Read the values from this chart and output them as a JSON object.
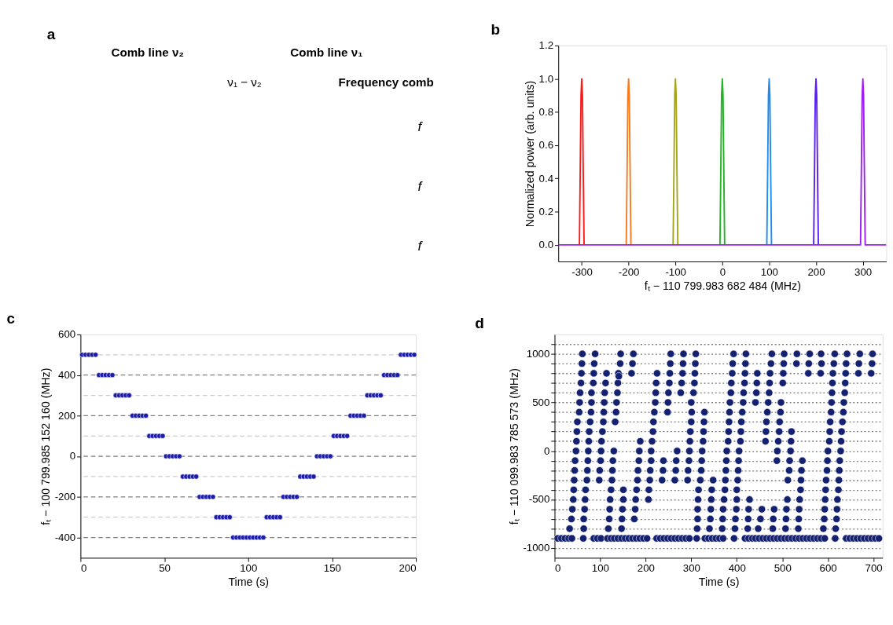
{
  "chart_data": [
    {
      "type": "other",
      "title": "a",
      "annotations": [
        "Comb line ν₂",
        "Comb line ν₁",
        "ν₁ − ν₂",
        "Frequency comb",
        "f",
        "f",
        "f"
      ]
    },
    {
      "type": "line",
      "title": "b",
      "xlabel": "fₜ − 110 799.983 682 484 (MHz)",
      "ylabel": "Normalized power (arb. units)",
      "xlim": [
        -350,
        350
      ],
      "xticks": [
        -300,
        -200,
        -100,
        0,
        100,
        200,
        300
      ],
      "ylim": [
        -0.1,
        1.2
      ],
      "yticks": [
        {
          "value": 0,
          "label": "0.0"
        },
        {
          "value": 0.2,
          "label": "0.2"
        },
        {
          "value": 0.4,
          "label": "0.4"
        },
        {
          "value": 0.6,
          "label": "0.6"
        },
        {
          "value": 0.8,
          "label": "0.8"
        },
        {
          "value": 1,
          "label": "1.0"
        },
        {
          "value": 1.2,
          "label": "1.2"
        }
      ],
      "line_style": "solid",
      "series": [
        {
          "color": "#ff1a1a",
          "x": [
            -305,
            -303,
            -301.5,
            -300,
            -298.5,
            -297,
            -295
          ],
          "values": [
            0,
            0.5,
            0.9,
            1,
            0.9,
            0.5,
            0
          ]
        },
        {
          "color": "#f57a22",
          "x": [
            -205,
            -203,
            -201.5,
            -200,
            -198.5,
            -197,
            -195
          ],
          "values": [
            0,
            0.5,
            0.9,
            1,
            0.9,
            0.5,
            0
          ]
        },
        {
          "color": "#a5a51a",
          "x": [
            -105,
            -103,
            -101.5,
            -100,
            -98.5,
            -97,
            -95
          ],
          "values": [
            0,
            0.5,
            0.9,
            1,
            0.9,
            0.5,
            0
          ]
        },
        {
          "color": "#22b422",
          "x": [
            -5,
            -3,
            -1.5,
            0,
            1.5,
            3,
            5
          ],
          "values": [
            0,
            0.5,
            0.9,
            1,
            0.9,
            0.5,
            0
          ]
        },
        {
          "color": "#1e8cf0",
          "x": [
            95,
            97,
            98.5,
            100,
            101.5,
            103,
            105
          ],
          "values": [
            0,
            0.5,
            0.9,
            1,
            0.9,
            0.5,
            0
          ]
        },
        {
          "color": "#5a1ef5",
          "x": [
            195,
            197,
            198.5,
            200,
            201.5,
            203,
            205
          ],
          "values": [
            0,
            0.5,
            0.9,
            1,
            0.9,
            0.5,
            0
          ]
        },
        {
          "color": "#a020f0",
          "x": [
            -350,
            295,
            297,
            298.5,
            300,
            301.5,
            303,
            305,
            350
          ],
          "values": [
            0,
            0,
            0.5,
            0.9,
            1,
            0.9,
            0.5,
            0,
            0
          ]
        }
      ]
    },
    {
      "type": "scatter",
      "title": "c",
      "xlabel": "Time (s)",
      "ylabel": "fₜ − 100 799.985 152 160 (MHz)",
      "xlim": [
        0,
        200
      ],
      "xticks": [
        0,
        50,
        100,
        150,
        200
      ],
      "ylim": [
        -500,
        600
      ],
      "yticks": [
        -400,
        -200,
        0,
        200,
        400,
        600
      ],
      "marker": "circle",
      "ref_lines": [
        {
          "axis": "y",
          "value": -400,
          "color": "#7f7f7f",
          "line_style": "dashed"
        },
        {
          "axis": "y",
          "value": -300,
          "color": "#cccccc",
          "line_style": "dashed"
        },
        {
          "axis": "y",
          "value": -200,
          "color": "#7f7f7f",
          "line_style": "dashed"
        },
        {
          "axis": "y",
          "value": -100,
          "color": "#cccccc",
          "line_style": "dashed"
        },
        {
          "axis": "y",
          "value": 0,
          "color": "#7f7f7f",
          "line_style": "dashed"
        },
        {
          "axis": "y",
          "value": 100,
          "color": "#cccccc",
          "line_style": "dashed"
        },
        {
          "axis": "y",
          "value": 200,
          "color": "#7f7f7f",
          "line_style": "dashed"
        },
        {
          "axis": "y",
          "value": 300,
          "color": "#cccccc",
          "line_style": "dashed"
        },
        {
          "axis": "y",
          "value": 400,
          "color": "#7f7f7f",
          "line_style": "dashed"
        },
        {
          "axis": "y",
          "value": 500,
          "color": "#cccccc",
          "line_style": "dashed"
        }
      ],
      "series": [
        {
          "color": "#1c1caa",
          "x": [
            1,
            3,
            5,
            7,
            9,
            11,
            13,
            15,
            17,
            19,
            21,
            23,
            25,
            27,
            29,
            31,
            33,
            35,
            37,
            39,
            41,
            43,
            45,
            47,
            49,
            51,
            53,
            55,
            57,
            59,
            61,
            63,
            65,
            67,
            69,
            71,
            73,
            75,
            77,
            79,
            81,
            83,
            85,
            87,
            89,
            91,
            93,
            95,
            97,
            99,
            101,
            103,
            105,
            107,
            109,
            111,
            113,
            115,
            117,
            119,
            121,
            123,
            125,
            127,
            129,
            131,
            133,
            135,
            137,
            139,
            141,
            143,
            145,
            147,
            149,
            151,
            153,
            155,
            157,
            159,
            161,
            163,
            165,
            167,
            169,
            171,
            173,
            175,
            177,
            179,
            181,
            183,
            185,
            187,
            189,
            191,
            193,
            195,
            197,
            199
          ],
          "values": [
            500,
            500,
            500,
            500,
            500,
            400,
            400,
            400,
            400,
            400,
            300,
            300,
            300,
            300,
            300,
            200,
            200,
            200,
            200,
            200,
            100,
            100,
            100,
            100,
            100,
            0,
            0,
            0,
            0,
            0,
            -100,
            -100,
            -100,
            -100,
            -100,
            -200,
            -200,
            -200,
            -200,
            -200,
            -300,
            -300,
            -300,
            -300,
            -300,
            -400,
            -400,
            -400,
            -400,
            -400,
            -400,
            -400,
            -400,
            -400,
            -400,
            -300,
            -300,
            -300,
            -300,
            -300,
            -200,
            -200,
            -200,
            -200,
            -200,
            -100,
            -100,
            -100,
            -100,
            -100,
            0,
            0,
            0,
            0,
            0,
            100,
            100,
            100,
            100,
            100,
            200,
            200,
            200,
            200,
            200,
            300,
            300,
            300,
            300,
            300,
            400,
            400,
            400,
            400,
            400,
            500,
            500,
            500,
            500,
            500
          ]
        }
      ]
    },
    {
      "type": "scatter",
      "title": "d",
      "xlabel": "Time (s)",
      "ylabel": "fₜ − 110 099.983 785 573 (MHz)",
      "xlim": [
        0,
        720
      ],
      "xticks": [
        0,
        100,
        200,
        300,
        400,
        500,
        600,
        700
      ],
      "ylim": [
        -1100,
        1200
      ],
      "yticks": [
        -1000,
        {
          "value": -900,
          "label": null
        },
        {
          "value": -800,
          "label": null
        },
        {
          "value": -700,
          "label": null
        },
        {
          "value": -600,
          "label": null
        },
        -500,
        {
          "value": -400,
          "label": null
        },
        {
          "value": -300,
          "label": null
        },
        {
          "value": -200,
          "label": null
        },
        {
          "value": -100,
          "label": null
        },
        0,
        {
          "value": 100,
          "label": null
        },
        {
          "value": 200,
          "label": null
        },
        {
          "value": 300,
          "label": null
        },
        {
          "value": 400,
          "label": null
        },
        500,
        {
          "value": 600,
          "label": null
        },
        {
          "value": 700,
          "label": null
        },
        {
          "value": 800,
          "label": null
        },
        {
          "value": 900,
          "label": null
        },
        1000,
        {
          "value": 1100,
          "label": null
        }
      ],
      "grid": "y",
      "marker": "circle",
      "series": [
        {
          "color": "#142170",
          "x": [
            7,
            15,
            23,
            31,
            38,
            63,
            86,
            94,
            102,
            116,
            124,
            131,
            139,
            147,
            155,
            163,
            171,
            179,
            187,
            195,
            203,
            224,
            232,
            240,
            248,
            256,
            264,
            272,
            280,
            288,
            296,
            312,
            330,
            338,
            346,
            354,
            362,
            370,
            394,
            418,
            426,
            434,
            441,
            449,
            457,
            465,
            473,
            481,
            489,
            497,
            505,
            513,
            521,
            529,
            537,
            545,
            553,
            561,
            569,
            577,
            585,
            593,
            616,
            640,
            648,
            656,
            664,
            672,
            680,
            688,
            696,
            704,
            712,
            33,
            37,
            39,
            41,
            42,
            43,
            44,
            45,
            47,
            48,
            49,
            50,
            54,
            55,
            56,
            58,
            59,
            60,
            61,
            64,
            64,
            66,
            67,
            68,
            71,
            72,
            73,
            74,
            75,
            76,
            78,
            80,
            81,
            81,
            85,
            86,
            87,
            89,
            98,
            99,
            101,
            102,
            103,
            105,
            107,
            108,
            109,
            110,
            112,
            114,
            118,
            120,
            121,
            122,
            124,
            126,
            127,
            128,
            130,
            133,
            135,
            136,
            138,
            139,
            140,
            141,
            144,
            145,
            147,
            148,
            149,
            151,
            151,
            169,
            171,
            173,
            175,
            177,
            178,
            180,
            182,
            183,
            185,
            186,
            188,
            206,
            207,
            209,
            210,
            212,
            212,
            214,
            216,
            217,
            219,
            221,
            222,
            223,
            225,
            236,
            238,
            239,
            248,
            249,
            250,
            252,
            253,
            254,
            255,
            264,
            266,
            267,
            269,
            277,
            279,
            281,
            282,
            283,
            292,
            293,
            295,
            296,
            297,
            298,
            300,
            301,
            300,
            305,
            307,
            308,
            309,
            310,
            313,
            314,
            314,
            315,
            316,
            320,
            322,
            323,
            324,
            326,
            327,
            328,
            329,
            340,
            342,
            343,
            344,
            345,
            348,
            368,
            369,
            370,
            372,
            374,
            375,
            376,
            377,
            378,
            381,
            382,
            383,
            384,
            385,
            387,
            388,
            390,
            391,
            393,
            396,
            397,
            399,
            400,
            400,
            402,
            403,
            404,
            405,
            408,
            409,
            410,
            412,
            414,
            415,
            417,
            418,
            419,
            420,
            424,
            425,
            426,
            428,
            441,
            443,
            444,
            445,
            447,
            452,
            455,
            463,
            464,
            465,
            467,
            469,
            471,
            472,
            473,
            475,
            477,
            479,
            480,
            482,
            488,
            489,
            491,
            493,
            494,
            496,
            497,
            501,
            502,
            503,
            504,
            507,
            508,
            509,
            511,
            512,
            515,
            516,
            518,
            519,
            520,
            531,
            532,
            535,
            536,
            537,
            538,
            540,
            541,
            542,
            544,
            557,
            558,
            560,
            584,
            586,
            585,
            590,
            592,
            593,
            594,
            595,
            596,
            598,
            599,
            600,
            603,
            604,
            605,
            607,
            608,
            609,
            610,
            611,
            613,
            615,
            617,
            619,
            620,
            621,
            623,
            624,
            625,
            626,
            628,
            629,
            630,
            632,
            634,
            635,
            637,
            638,
            639,
            640,
            642,
            667,
            668,
            670,
            695,
            697,
            698
          ],
          "values": [
            -900,
            -900,
            -900,
            -900,
            -900,
            -900,
            -900,
            -900,
            -900,
            -900,
            -900,
            -900,
            -900,
            -900,
            -900,
            -900,
            -900,
            -900,
            -900,
            -900,
            -900,
            -900,
            -900,
            -900,
            -900,
            -900,
            -900,
            -900,
            -900,
            -900,
            -900,
            -900,
            -900,
            -900,
            -900,
            -900,
            -900,
            -900,
            -900,
            -900,
            -900,
            -900,
            -900,
            -900,
            -900,
            -900,
            -900,
            -900,
            -900,
            -900,
            -900,
            -900,
            -900,
            -900,
            -900,
            -900,
            -900,
            -900,
            -900,
            -900,
            -900,
            -900,
            -900,
            -900,
            -900,
            -900,
            -900,
            -900,
            -900,
            -900,
            -900,
            -900,
            -900,
            -800,
            -700,
            -600,
            -500,
            -400,
            -300,
            -200,
            -100,
            0,
            100,
            200,
            300,
            400,
            500,
            600,
            700,
            800,
            900,
            1000,
            -800,
            -700,
            -600,
            -500,
            -400,
            -300,
            -200,
            -100,
            0,
            100,
            200,
            300,
            400,
            500,
            600,
            700,
            800,
            900,
            1000,
            -300,
            -200,
            -100,
            0,
            100,
            200,
            300,
            400,
            500,
            600,
            700,
            800,
            -800,
            -700,
            -600,
            -500,
            -400,
            -300,
            -200,
            -100,
            0,
            300,
            400,
            500,
            600,
            700,
            800,
            770,
            900,
            1000,
            -800,
            -700,
            -600,
            -500,
            -400,
            800,
            900,
            1000,
            -700,
            -600,
            -500,
            -400,
            -300,
            -200,
            -100,
            0,
            100,
            -500,
            -400,
            -300,
            -200,
            -100,
            0,
            100,
            200,
            300,
            400,
            500,
            600,
            700,
            800,
            -300,
            -200,
            -100,
            400,
            500,
            600,
            700,
            800,
            900,
            1000,
            -300,
            -200,
            -100,
            0,
            600,
            700,
            800,
            900,
            1000,
            -300,
            -200,
            -100,
            0,
            100,
            200,
            300,
            400,
            500,
            600,
            700,
            800,
            900,
            1000,
            -800,
            -700,
            -600,
            -500,
            -400,
            -300,
            -200,
            -100,
            0,
            100,
            200,
            300,
            400,
            -800,
            -700,
            -600,
            -500,
            -400,
            -300,
            -800,
            -700,
            -600,
            -500,
            -400,
            -300,
            -200,
            -100,
            0,
            100,
            200,
            300,
            400,
            500,
            600,
            700,
            800,
            900,
            1000,
            -800,
            -700,
            -600,
            -500,
            -400,
            -300,
            -200,
            -100,
            0,
            100,
            200,
            300,
            400,
            500,
            600,
            700,
            800,
            900,
            1000,
            -800,
            -700,
            -600,
            -500,
            500,
            600,
            700,
            800,
            -800,
            -700,
            -600,
            100,
            200,
            300,
            400,
            500,
            600,
            700,
            800,
            900,
            1000,
            -800,
            -700,
            -600,
            -100,
            0,
            100,
            200,
            300,
            400,
            500,
            700,
            800,
            900,
            1000,
            -800,
            -700,
            -600,
            -500,
            -300,
            -200,
            -100,
            0,
            100,
            200,
            900,
            1000,
            -800,
            -700,
            -600,
            -500,
            -400,
            -300,
            -200,
            -100,
            800,
            900,
            1000,
            800,
            900,
            1000,
            -800,
            -700,
            -600,
            -500,
            -400,
            -300,
            -200,
            -100,
            0,
            100,
            200,
            300,
            400,
            500,
            600,
            700,
            800,
            900,
            1000,
            -800,
            -700,
            -600,
            -500,
            -400,
            -300,
            -200,
            -100,
            0,
            100,
            200,
            300,
            400,
            500,
            600,
            700,
            800,
            900,
            1000,
            800,
            900,
            1000,
            800,
            900,
            1000
          ]
        }
      ]
    }
  ]
}
